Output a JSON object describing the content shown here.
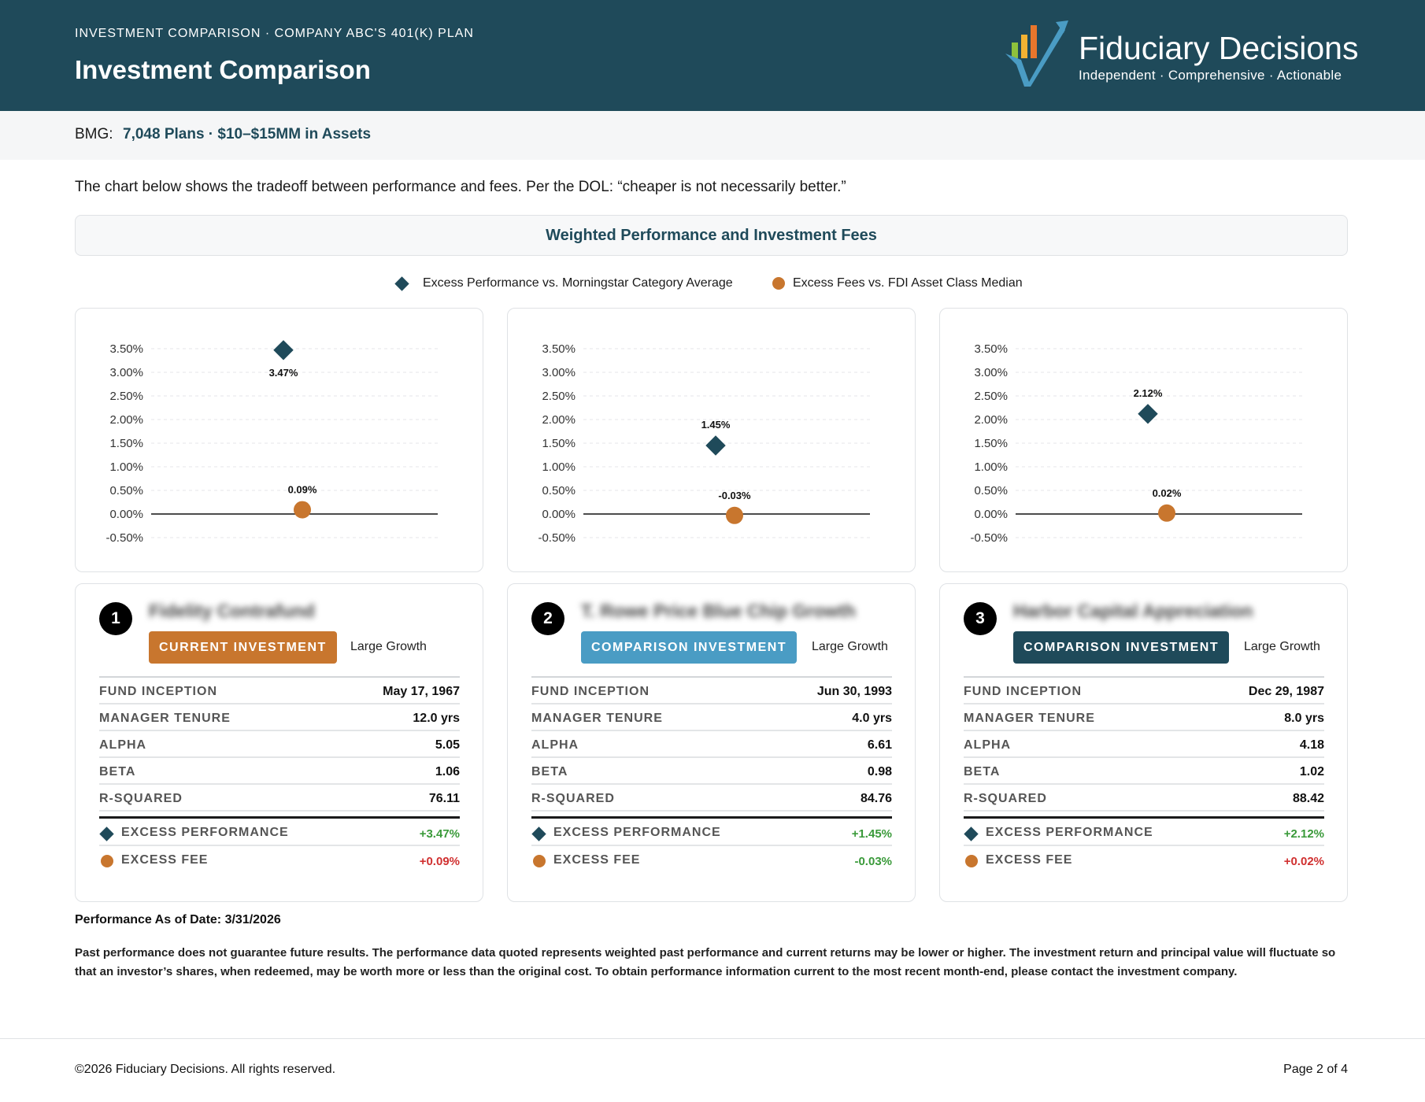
{
  "header": {
    "kicker": "INVESTMENT COMPARISON · COMPANY ABC'S 401(K) PLAN",
    "title": "Investment Comparison",
    "logo_name": "Fiduciary Decisions",
    "logo_tagline": "Independent · Comprehensive · Actionable",
    "logo_icon": "checkmark-bar-chart-logo"
  },
  "bmg": {
    "label": "BMG:",
    "value": "7,048 Plans · $10–$15MM in Assets"
  },
  "intro": "The chart below shows the tradeoff between performance and fees. Per the DOL: “cheaper is not necessarily better.”",
  "chart_title": "Weighted Performance and Investment Fees",
  "legend": {
    "performance": "Excess Performance vs. Morningstar Category Average",
    "fees": "Excess Fees vs. FDI Asset Class Median"
  },
  "colors": {
    "brand": "#1f4a5a",
    "performance_marker": "#1f4a5a",
    "fee_marker": "#c8762e",
    "current_badge": "#c8762e",
    "comparison_badge_2": "#4a9cc4",
    "comparison_badge_3": "#1f4a5a",
    "positive": "#3a9a3a",
    "negative": "#d03030"
  },
  "chart_data": [
    {
      "type": "scatter",
      "ylim": [
        -0.5,
        3.5
      ],
      "y_ticks": [
        "3.50%",
        "3.00%",
        "2.50%",
        "2.00%",
        "1.50%",
        "1.00%",
        "0.50%",
        "0.00%",
        "-0.50%"
      ],
      "series": [
        {
          "name": "Excess Performance vs. Morningstar Category Average",
          "values": [
            3.47
          ],
          "labels": [
            "3.47%"
          ]
        },
        {
          "name": "Excess Fees vs. FDI Asset Class Median",
          "values": [
            0.09
          ],
          "labels": [
            "0.09%"
          ]
        }
      ]
    },
    {
      "type": "scatter",
      "ylim": [
        -0.5,
        3.5
      ],
      "y_ticks": [
        "3.50%",
        "3.00%",
        "2.50%",
        "2.00%",
        "1.50%",
        "1.00%",
        "0.50%",
        "0.00%",
        "-0.50%"
      ],
      "series": [
        {
          "name": "Excess Performance vs. Morningstar Category Average",
          "values": [
            1.45
          ],
          "labels": [
            "1.45%"
          ]
        },
        {
          "name": "Excess Fees vs. FDI Asset Class Median",
          "values": [
            -0.03
          ],
          "labels": [
            "-0.03%"
          ]
        }
      ]
    },
    {
      "type": "scatter",
      "ylim": [
        -0.5,
        3.5
      ],
      "y_ticks": [
        "3.50%",
        "3.00%",
        "2.50%",
        "2.00%",
        "1.50%",
        "1.00%",
        "0.50%",
        "0.00%",
        "-0.50%"
      ],
      "series": [
        {
          "name": "Excess Performance vs. Morningstar Category Average",
          "values": [
            2.12
          ],
          "labels": [
            "2.12%"
          ]
        },
        {
          "name": "Excess Fees vs. FDI Asset Class Median",
          "values": [
            0.02
          ],
          "labels": [
            "0.02%"
          ]
        }
      ]
    }
  ],
  "funds": [
    {
      "number": "1",
      "name": "Fidelity Contrafund",
      "badge": "CURRENT INVESTMENT",
      "category": "Large Growth",
      "rows": [
        {
          "label": "FUND INCEPTION",
          "value": "May 17, 1967"
        },
        {
          "label": "MANAGER TENURE",
          "value": "12.0 yrs"
        },
        {
          "label": "ALPHA",
          "value": "5.05"
        },
        {
          "label": "BETA",
          "value": "1.06"
        },
        {
          "label": "R-SQUARED",
          "value": "76.11"
        }
      ],
      "excess_performance_label": "EXCESS PERFORMANCE",
      "excess_performance": "+3.47%",
      "excess_fee_label": "EXCESS FEE",
      "excess_fee": "+0.09%"
    },
    {
      "number": "2",
      "name": "T. Rowe Price Blue Chip Growth",
      "badge": "COMPARISON INVESTMENT",
      "category": "Large Growth",
      "rows": [
        {
          "label": "FUND INCEPTION",
          "value": "Jun 30, 1993"
        },
        {
          "label": "MANAGER TENURE",
          "value": "4.0 yrs"
        },
        {
          "label": "ALPHA",
          "value": "6.61"
        },
        {
          "label": "BETA",
          "value": "0.98"
        },
        {
          "label": "R-SQUARED",
          "value": "84.76"
        }
      ],
      "excess_performance_label": "EXCESS PERFORMANCE",
      "excess_performance": "+1.45%",
      "excess_fee_label": "EXCESS FEE",
      "excess_fee": "-0.03%"
    },
    {
      "number": "3",
      "name": "Harbor Capital Appreciation",
      "badge": "COMPARISON INVESTMENT",
      "category": "Large Growth",
      "rows": [
        {
          "label": "FUND INCEPTION",
          "value": "Dec 29, 1987"
        },
        {
          "label": "MANAGER TENURE",
          "value": "8.0 yrs"
        },
        {
          "label": "ALPHA",
          "value": "4.18"
        },
        {
          "label": "BETA",
          "value": "1.02"
        },
        {
          "label": "R-SQUARED",
          "value": "88.42"
        }
      ],
      "excess_performance_label": "EXCESS PERFORMANCE",
      "excess_performance": "+2.12%",
      "excess_fee_label": "EXCESS FEE",
      "excess_fee": "+0.02%"
    }
  ],
  "as_of": "Performance As of Date: 3/31/2026",
  "disclaimer": "Past performance does not guarantee future results. The performance data quoted represents weighted past performance and current returns may be lower or higher. The investment return and principal value will fluctuate so that an investor’s shares, when redeemed, may be worth more or less than the original cost. To obtain performance information current to the most recent month-end, please contact the investment company.",
  "footer": {
    "copyright": "©2026 Fiduciary Decisions. All rights reserved.",
    "page": "Page 2 of 4"
  }
}
